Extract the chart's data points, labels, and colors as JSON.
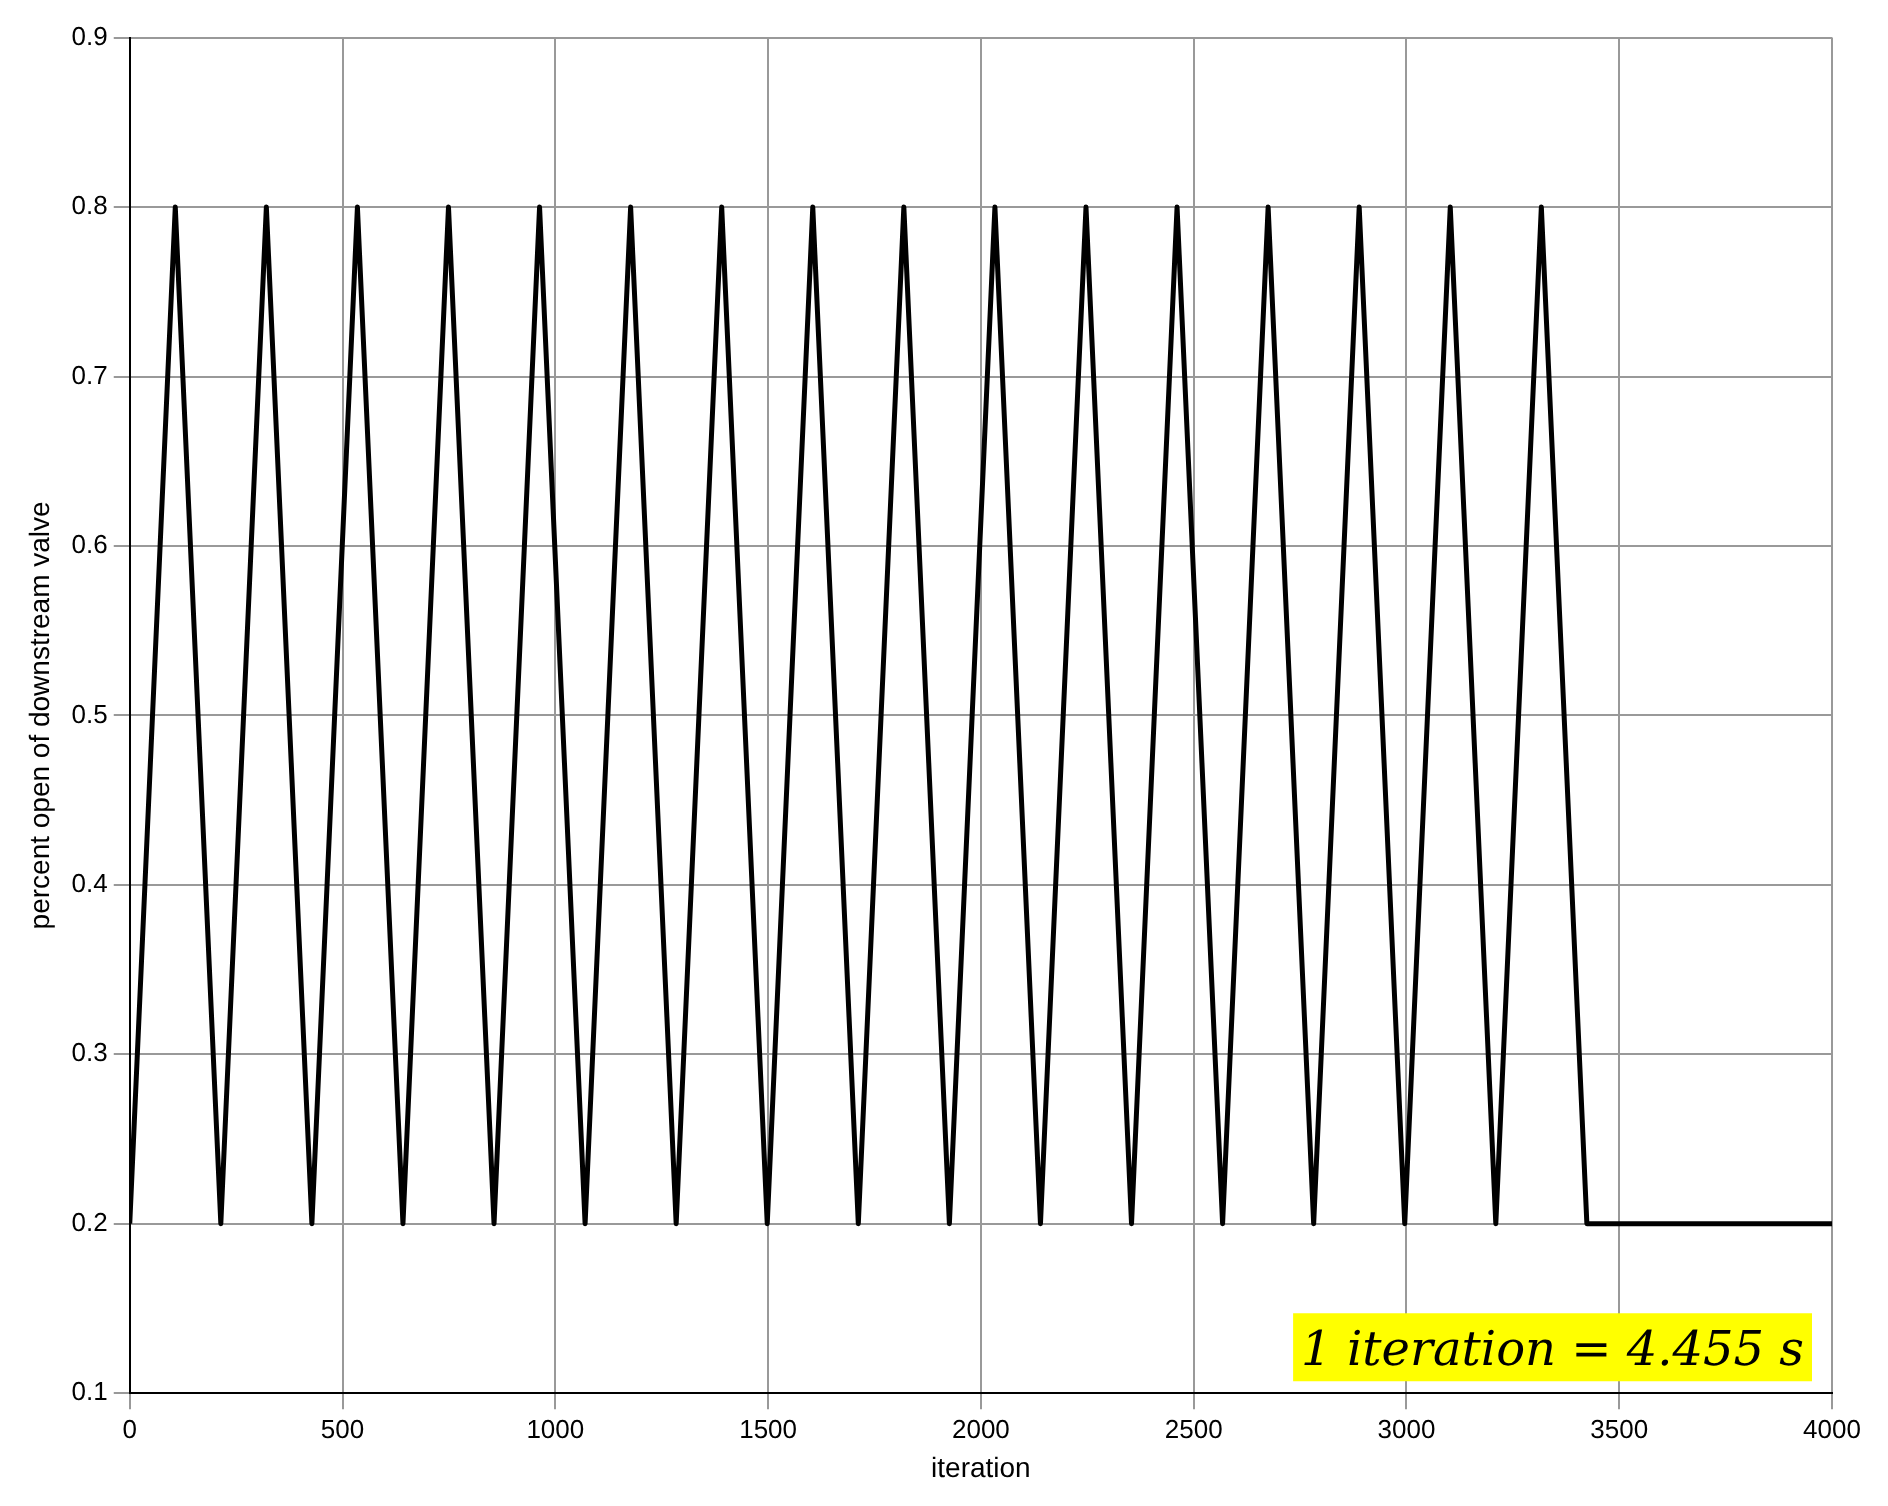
{
  "chart_data": {
    "type": "line",
    "xlabel": "iteration",
    "ylabel": "percent open of downstream valve",
    "x": [
      0,
      107,
      214,
      321,
      428,
      535,
      642,
      749,
      856,
      963,
      1070,
      1177,
      1284,
      1391,
      1498,
      1605,
      1712,
      1819,
      1926,
      2033,
      2140,
      2247,
      2354,
      2461,
      2568,
      2675,
      2782,
      2889,
      2996,
      3103,
      3210,
      3317,
      3424,
      4000
    ],
    "series": [
      {
        "color": "#000000",
        "values": [
          0.2,
          0.8,
          0.2,
          0.8,
          0.2,
          0.8,
          0.2,
          0.8,
          0.2,
          0.8,
          0.2,
          0.8,
          0.2,
          0.8,
          0.2,
          0.8,
          0.2,
          0.8,
          0.2,
          0.8,
          0.2,
          0.8,
          0.2,
          0.8,
          0.2,
          0.8,
          0.2,
          0.8,
          0.2,
          0.8,
          0.2,
          0.8,
          0.2,
          0.2
        ]
      }
    ],
    "xlim": [
      0,
      4000
    ],
    "xticks": [
      0,
      500,
      1000,
      1500,
      2000,
      2500,
      3000,
      3500,
      4000
    ],
    "ylim": [
      0.1,
      0.9
    ],
    "yticks": [
      0.1,
      0.2,
      0.3,
      0.4,
      0.5,
      0.6,
      0.7,
      0.8,
      0.9
    ],
    "grid": true,
    "legend": false,
    "marker": "none",
    "line_style": "solid",
    "annotations": [
      "1 iteration = 4.455 s"
    ]
  }
}
